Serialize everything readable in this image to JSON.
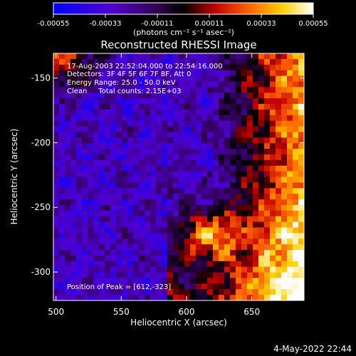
{
  "colorbar": {
    "tick_labels": [
      "-0.00055",
      "-0.00033",
      "-0.00011",
      "0.00011",
      "0.00033",
      "0.00055"
    ],
    "units_label": "(photons cm⁻² s⁻¹ asec⁻²)",
    "range": [
      -0.00055,
      0.00055
    ]
  },
  "chart_data": {
    "type": "heatmap",
    "title": "Reconstructed RHESSI Image",
    "xlabel": "Heliocentric X (arcsec)",
    "ylabel": "Heliocentric Y (arcsec)",
    "xlim": [
      498,
      690
    ],
    "ylim": [
      -322,
      -131
    ],
    "xticks": [
      500,
      550,
      600,
      650
    ],
    "yticks": [
      -150,
      -200,
      -250,
      -300
    ],
    "annotations": [
      "17-Aug-2003 22:52:04.000 to 22:54:16.000",
      "Detectors: 3F 4F 5F 6F 7F 8F, Att 0",
      "Energy Range: 25.0 - 50.0 keV",
      "Clean     Total counts: 2.15E+03"
    ],
    "peak_label": "Position of Peak = [612,-323]",
    "peak_position": [
      612,
      -323
    ],
    "colormap": [
      "#0000ff",
      "#7000b0",
      "#000000",
      "#c00000",
      "#ff8000",
      "#ffff00",
      "#ffffff"
    ]
  },
  "footer": {
    "date": "4-May-2022 22:44"
  }
}
